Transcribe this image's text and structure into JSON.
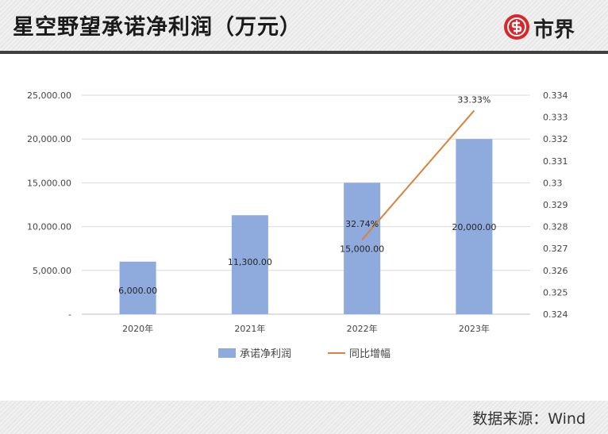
{
  "header": {
    "title": "星空野望承诺净利润（万元）",
    "logo_text": "市界"
  },
  "footer": {
    "source": "数据来源：Wind"
  },
  "chart_data": {
    "type": "bar",
    "categories": [
      "2020年",
      "2021年",
      "2022年",
      "2023年"
    ],
    "series": [
      {
        "name": "承诺净利润",
        "type": "bar",
        "axis": "left",
        "values": [
          6000,
          11300,
          15000,
          20000
        ],
        "labels": [
          "6,000.00",
          "11,300.00",
          "15,000.00",
          "20,000.00"
        ],
        "color": "#8faadc"
      },
      {
        "name": "同比增幅",
        "type": "line",
        "axis": "right",
        "values": [
          null,
          null,
          0.3274,
          0.3333
        ],
        "labels": [
          "",
          "",
          "32.74%",
          "33.33%"
        ],
        "color": "#d9823b"
      }
    ],
    "ylim_left": [
      0,
      25000
    ],
    "yticks_left": [
      "-",
      "5,000.00",
      "10,000.00",
      "15,000.00",
      "20,000.00",
      "25,000.00"
    ],
    "ylim_right": [
      0.324,
      0.334
    ],
    "yticks_right": [
      "0.324",
      "0.325",
      "0.326",
      "0.327",
      "0.328",
      "0.329",
      "0.33",
      "0.331",
      "0.332",
      "0.333",
      "0.334"
    ],
    "grid": true,
    "legend_position": "bottom"
  }
}
